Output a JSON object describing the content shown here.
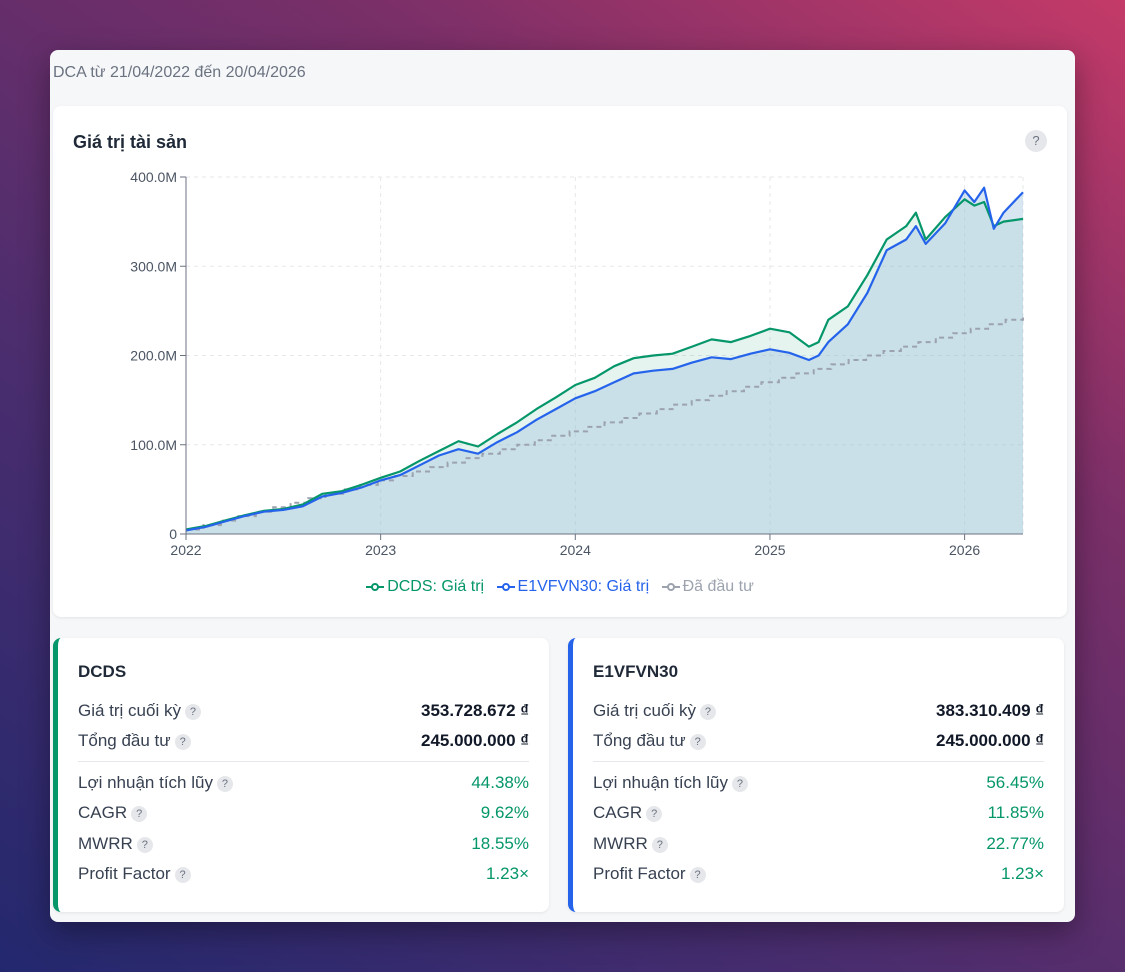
{
  "header": {
    "subtitle": "DCA từ 21/04/2022 đến 20/04/2026"
  },
  "chart": {
    "help_icon": "?"
  },
  "chart_data": {
    "type": "line",
    "title": "Giá trị tài sản",
    "xlabel": "",
    "ylabel": "",
    "x_ticks": [
      "2022",
      "2023",
      "2024",
      "2025",
      "2026"
    ],
    "y_ticks": [
      "0",
      "100.0M",
      "200.0M",
      "300.0M",
      "400.0M"
    ],
    "ylim": [
      0,
      400
    ],
    "xlim": [
      2022.0,
      2026.3
    ],
    "legend_position": "bottom",
    "series": [
      {
        "name": "DCDS: Giá trị",
        "color": "#059669",
        "x": [
          2022.0,
          2022.1,
          2022.2,
          2022.3,
          2022.4,
          2022.5,
          2022.6,
          2022.7,
          2022.8,
          2022.9,
          2023.0,
          2023.1,
          2023.2,
          2023.3,
          2023.4,
          2023.5,
          2023.6,
          2023.7,
          2023.8,
          2023.9,
          2024.0,
          2024.1,
          2024.2,
          2024.3,
          2024.4,
          2024.5,
          2024.6,
          2024.7,
          2024.8,
          2024.9,
          2025.0,
          2025.1,
          2025.2,
          2025.25,
          2025.3,
          2025.4,
          2025.5,
          2025.6,
          2025.7,
          2025.75,
          2025.8,
          2025.9,
          2026.0,
          2026.05,
          2026.1,
          2026.15,
          2026.2,
          2026.3
        ],
        "values": [
          5,
          9,
          15,
          21,
          26,
          28,
          33,
          45,
          48,
          55,
          63,
          70,
          82,
          93,
          104,
          98,
          112,
          125,
          140,
          153,
          167,
          175,
          188,
          197,
          200,
          202,
          210,
          218,
          215,
          222,
          230,
          226,
          210,
          215,
          240,
          255,
          290,
          330,
          345,
          360,
          330,
          355,
          375,
          368,
          372,
          345,
          350,
          353
        ]
      },
      {
        "name": "E1VFVN30: Giá trị",
        "color": "#2563eb",
        "x": [
          2022.0,
          2022.1,
          2022.2,
          2022.3,
          2022.4,
          2022.5,
          2022.6,
          2022.7,
          2022.8,
          2022.9,
          2023.0,
          2023.1,
          2023.2,
          2023.3,
          2023.4,
          2023.5,
          2023.6,
          2023.7,
          2023.8,
          2023.9,
          2024.0,
          2024.1,
          2024.2,
          2024.3,
          2024.4,
          2024.5,
          2024.6,
          2024.7,
          2024.8,
          2024.9,
          2025.0,
          2025.1,
          2025.2,
          2025.25,
          2025.3,
          2025.4,
          2025.5,
          2025.6,
          2025.7,
          2025.75,
          2025.8,
          2025.9,
          2026.0,
          2026.05,
          2026.1,
          2026.15,
          2026.2,
          2026.3
        ],
        "values": [
          4,
          8,
          14,
          20,
          25,
          27,
          31,
          42,
          46,
          52,
          60,
          66,
          77,
          88,
          95,
          90,
          103,
          114,
          128,
          140,
          152,
          160,
          170,
          180,
          183,
          185,
          192,
          198,
          196,
          202,
          207,
          203,
          195,
          200,
          215,
          235,
          270,
          318,
          330,
          345,
          325,
          348,
          385,
          372,
          388,
          342,
          360,
          383
        ]
      },
      {
        "name": "Đã đầu tư",
        "color": "#9ca3af",
        "dashed": true,
        "x": [
          2022.0,
          2026.3
        ],
        "values": [
          5,
          245
        ]
      }
    ]
  },
  "cards": [
    {
      "name": "DCDS",
      "accent": "#059669",
      "rows": [
        {
          "label": "Giá trị cuối kỳ",
          "value": "353.728.672 ₫"
        },
        {
          "label": "Tổng đầu tư",
          "value": "245.000.000 ₫"
        },
        {
          "label": "Lợi nhuận tích lũy",
          "value": "44.38%"
        },
        {
          "label": "CAGR",
          "value": "9.62%"
        },
        {
          "label": "MWRR",
          "value": "18.55%"
        },
        {
          "label": "Profit Factor",
          "value": "1.23×"
        }
      ]
    },
    {
      "name": "E1VFVN30",
      "accent": "#2563eb",
      "rows": [
        {
          "label": "Giá trị cuối kỳ",
          "value": "383.310.409 ₫"
        },
        {
          "label": "Tổng đầu tư",
          "value": "245.000.000 ₫"
        },
        {
          "label": "Lợi nhuận tích lũy",
          "value": "56.45%"
        },
        {
          "label": "CAGR",
          "value": "11.85%"
        },
        {
          "label": "MWRR",
          "value": "22.77%"
        },
        {
          "label": "Profit Factor",
          "value": "1.23×"
        }
      ]
    }
  ],
  "help_label": "?"
}
